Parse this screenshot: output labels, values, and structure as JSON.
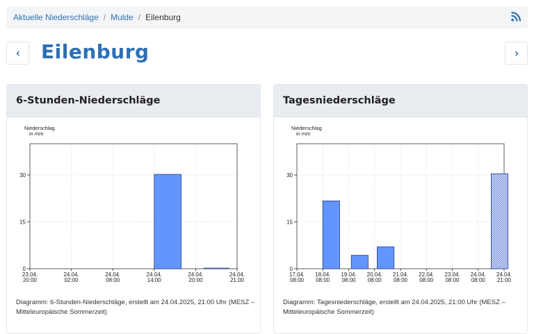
{
  "breadcrumb": {
    "items": [
      "Aktuelle Niederschläge",
      "Mulde"
    ],
    "current": "Eilenburg",
    "separator": "/"
  },
  "icons": {
    "rss": "rss-feed-icon",
    "prev": "chevron-left-icon",
    "next": "chevron-right-icon"
  },
  "page": {
    "title": "Eilenburg"
  },
  "colors": {
    "accent": "#2f6fb3",
    "bar_fill": "#6495ff",
    "bar_stroke": "#1f3a8a",
    "bar_hatched_fill": "#c7d4ff"
  },
  "chart_data": [
    {
      "type": "bar",
      "title": "6-Stunden-Niederschläge",
      "ylabel": "Niederschlag\nin mm",
      "ylim": [
        0,
        40
      ],
      "yticks": [
        0,
        15,
        30
      ],
      "x_ticks": [
        "23.04.\n20:00",
        "24.04.\n02:00",
        "24.04.\n08:00",
        "24.04.\n14:00",
        "24.04.\n20:00",
        "24.04.\n21:00"
      ],
      "bars": [
        {
          "start": 3,
          "end": 3.65,
          "value": 30.2,
          "style": "solid"
        },
        {
          "start": 4.2,
          "end": 4.8,
          "value": 0.2,
          "style": "hatched"
        }
      ],
      "caption": "Diagramm: 6-Stunden-Niederschläge, erstellt am 24.04.2025, 21:00 Uhr (MESZ – Mitteleuropäische Sommerzeit)"
    },
    {
      "type": "bar",
      "title": "Tagesniederschläge",
      "ylabel": "Niederschlag\nin mm",
      "ylim": [
        0,
        40
      ],
      "yticks": [
        0,
        15,
        30
      ],
      "x_ticks": [
        "17.04.\n08:00",
        "18.04.\n08:00",
        "19.04.\n08:00",
        "20.04.\n08:00",
        "21.04.\n08:00",
        "22.04.\n08:00",
        "23.04.\n08:00",
        "24.04.\n08:00",
        "24.04.\n21:00"
      ],
      "bars": [
        {
          "start": 1,
          "end": 1.65,
          "value": 21.7,
          "style": "solid"
        },
        {
          "start": 2.1,
          "end": 2.75,
          "value": 4.3,
          "style": "solid"
        },
        {
          "start": 3.1,
          "end": 3.75,
          "value": 7.0,
          "style": "solid"
        },
        {
          "start": 7.5,
          "end": 8.15,
          "value": 30.4,
          "style": "hatched"
        }
      ],
      "caption": "Diagramm: Tagesniederschläge, erstellt am 24.04.2025, 21:00 Uhr (MESZ – Mitteleuropäische Sommerzeit)"
    }
  ]
}
